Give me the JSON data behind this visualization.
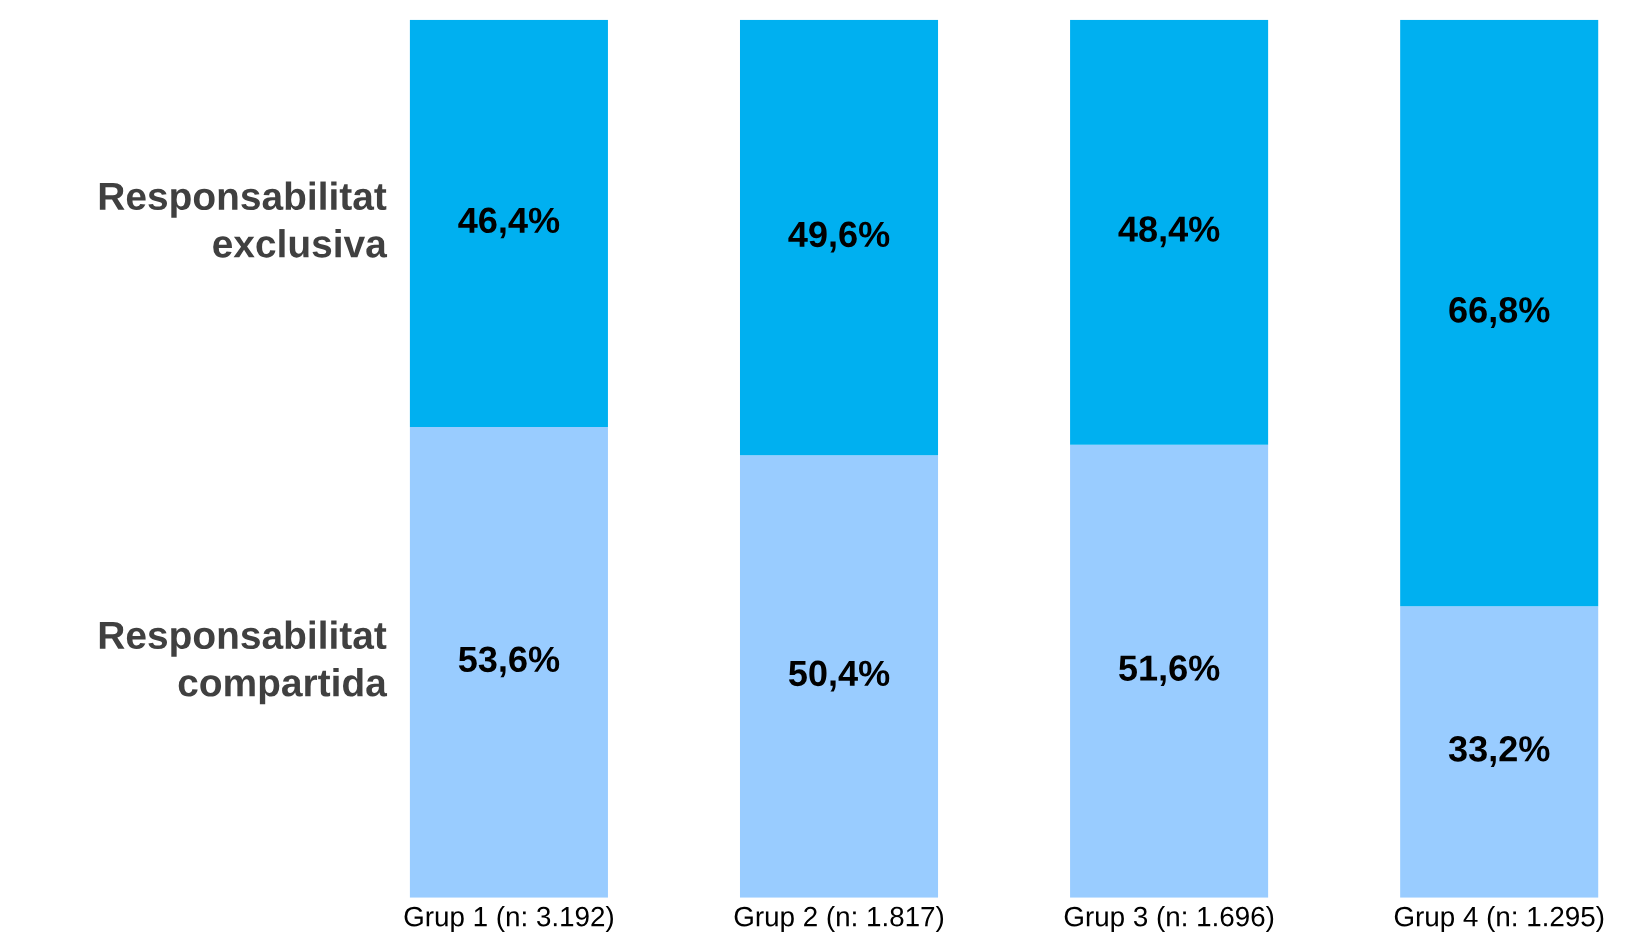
{
  "chart_data": {
    "type": "bar",
    "stacked": true,
    "categories": [
      "Grup 1 (n: 3.192)",
      "Grup 2 (n: 1.817)",
      "Grup 3 (n: 1.696)",
      "Grup 4 (n: 1.295)"
    ],
    "series": [
      {
        "name": "Responsabilitat compartida",
        "color": "#99ccff",
        "values": [
          53.6,
          50.4,
          51.6,
          33.2
        ],
        "value_labels": [
          "53,6%",
          "50,4%",
          "51,6%",
          "33,2%"
        ]
      },
      {
        "name": "Responsabilitat exclusiva",
        "color": "#00b0f0",
        "values": [
          46.4,
          49.6,
          48.4,
          66.8
        ],
        "value_labels": [
          "46,4%",
          "49,6%",
          "48,4%",
          "66,8%"
        ]
      }
    ],
    "ylim": [
      0,
      100
    ],
    "tick_labels": "x",
    "grid": false,
    "legend": false
  }
}
